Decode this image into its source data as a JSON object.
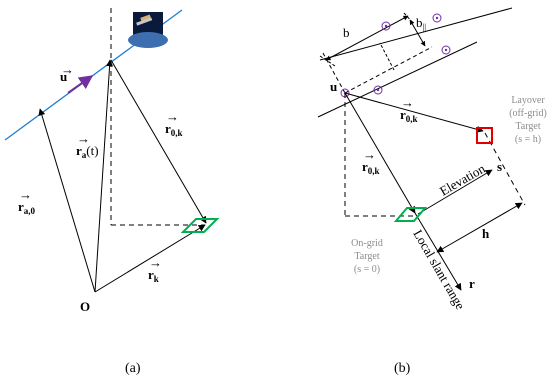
{
  "panel_a": {
    "u_label": "u",
    "ra0_label": "r",
    "ra0_sub": "a,0",
    "rat_label": "r",
    "rat_sub": "a",
    "rat_arg": "(t)",
    "r0k_label": "r",
    "r0k_sub": "0,k",
    "rk_label": "r",
    "rk_sub": "k",
    "origin_label": "O",
    "caption": "(a)"
  },
  "panel_b": {
    "b_label": "b",
    "bpar_label": "b",
    "bpar_sub": "||",
    "u_label": "u",
    "r0k_top_label": "r",
    "r0k_top_sub": "0,k",
    "r0k_left_label": "r",
    "r0k_left_sub": "0,k",
    "layover_line1": "Layover",
    "layover_line2": "(off-grid)",
    "layover_line3": "Target",
    "layover_line4": "(s = h)",
    "elevation_label": "Elevation",
    "s_label": "s",
    "ongrid_line1": "On-grid",
    "ongrid_line2": "Target",
    "ongrid_line3": "(s = 0)",
    "h_label": "h",
    "slant_label": "Local slant range",
    "r_label": "r",
    "caption": "(b)"
  },
  "colors": {
    "orbit": "#1f7fd0",
    "u_arrow": "#7030a0",
    "ground_patch": "#00b050",
    "layover_box": "#e00000",
    "scatterer": "#7030a0",
    "gray_text": "#8c8c8c"
  },
  "icons": [
    "satellite-icon"
  ]
}
